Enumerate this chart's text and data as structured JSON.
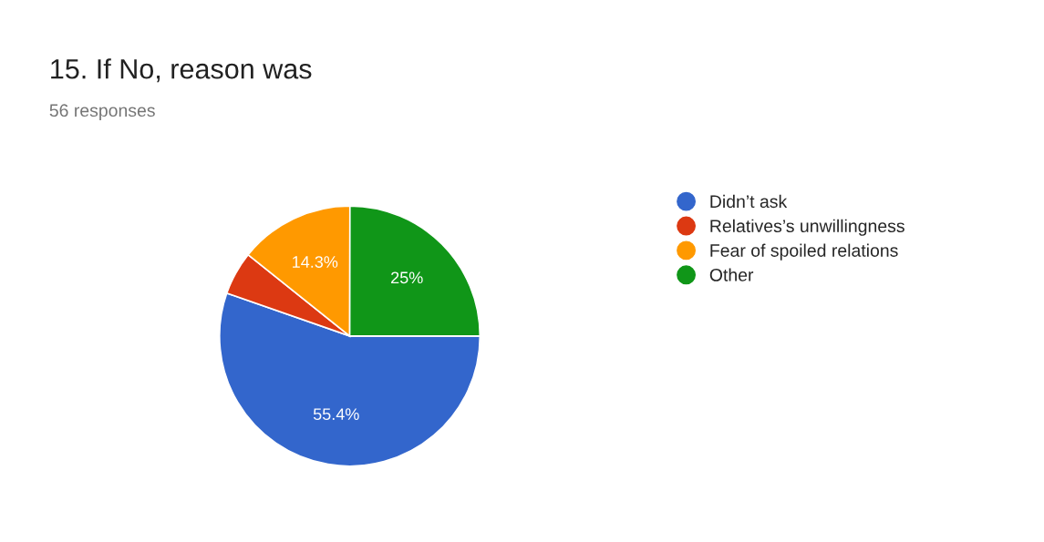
{
  "chart_data": {
    "type": "pie",
    "title": "15. If No, reason was",
    "subtitle": "56 responses",
    "categories": [
      "Didn’t ask",
      "Relatives’s unwillingness",
      "Fear of spoiled relations",
      "Other"
    ],
    "values": [
      55.4,
      5.4,
      14.3,
      25
    ],
    "colors": [
      "#3366cc",
      "#dc3912",
      "#ff9900",
      "#109618"
    ],
    "value_labels": [
      "55.4%",
      null,
      "14.3%",
      "25%"
    ],
    "legend": "right"
  }
}
